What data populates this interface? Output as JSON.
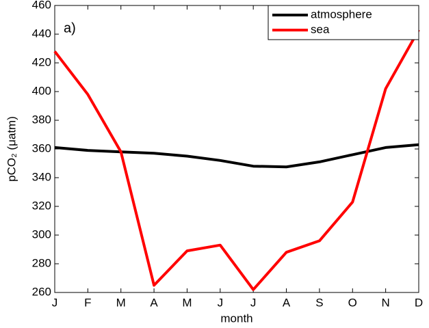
{
  "chart_data": {
    "type": "line",
    "annotation": "a)",
    "xlabel": "month",
    "ylabel": "pCO₂ (μatm)",
    "categories": [
      "J",
      "F",
      "M",
      "A",
      "M",
      "J",
      "J",
      "A",
      "S",
      "O",
      "N",
      "D"
    ],
    "series": [
      {
        "name": "atmosphere",
        "color": "#000000",
        "values": [
          361,
          359,
          358,
          357,
          355,
          352,
          348,
          347.5,
          351,
          356,
          361,
          363
        ]
      },
      {
        "name": "sea",
        "color": "#ff0000",
        "values": [
          428,
          398,
          358,
          265,
          289,
          293,
          262,
          288,
          296,
          323,
          402,
          443
        ]
      }
    ],
    "ylim": [
      260,
      460
    ],
    "yticks": [
      260,
      280,
      300,
      320,
      340,
      360,
      380,
      400,
      420,
      440,
      460
    ],
    "legend": "northeast"
  }
}
